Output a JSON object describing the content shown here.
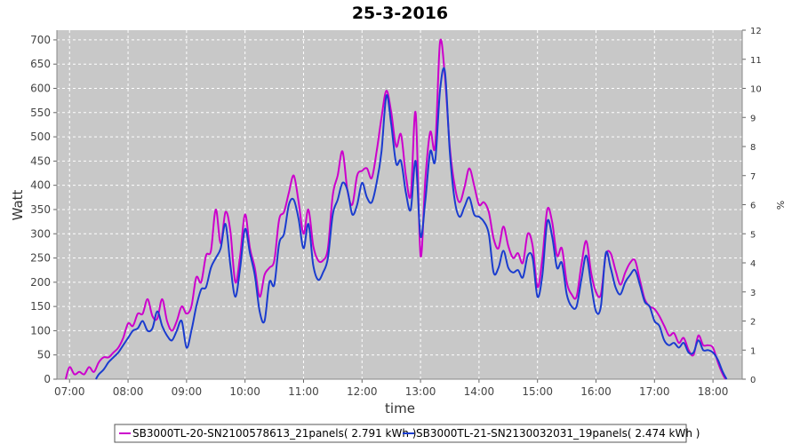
{
  "chart_data": {
    "type": "line",
    "title": "25-3-2016",
    "xlabel": "time",
    "ylabel": "Watt",
    "ylabel_right": "%",
    "x_ticks": [
      "07:00",
      "08:00",
      "09:00",
      "10:00",
      "11:00",
      "12:00",
      "13:00",
      "14:00",
      "15:00",
      "16:00",
      "17:00",
      "18:00"
    ],
    "y_ticks": [
      0,
      50,
      100,
      150,
      200,
      250,
      300,
      350,
      400,
      450,
      500,
      550,
      600,
      650,
      700
    ],
    "y2_ticks": [
      0,
      1,
      2,
      3,
      4,
      5,
      6,
      7,
      8,
      9,
      10,
      11,
      12
    ],
    "xlim": [
      "06:47",
      "18:30"
    ],
    "ylim": [
      0,
      720
    ],
    "y2lim": [
      0,
      12
    ],
    "grid": true,
    "legend_position": "bottom",
    "colors": {
      "plot_bg": "#c8c8c8"
    },
    "series": [
      {
        "name": "SB3000TL-20-SN2100578613_21panels( 2.791 kWh )",
        "color": "#cc00cc",
        "points": [
          [
            "06:56",
            0
          ],
          [
            "07:00",
            25
          ],
          [
            "07:05",
            10
          ],
          [
            "07:10",
            15
          ],
          [
            "07:15",
            10
          ],
          [
            "07:20",
            25
          ],
          [
            "07:25",
            15
          ],
          [
            "07:30",
            35
          ],
          [
            "07:35",
            45
          ],
          [
            "07:40",
            45
          ],
          [
            "07:45",
            55
          ],
          [
            "07:50",
            65
          ],
          [
            "07:55",
            85
          ],
          [
            "08:00",
            115
          ],
          [
            "08:05",
            110
          ],
          [
            "08:10",
            135
          ],
          [
            "08:15",
            135
          ],
          [
            "08:20",
            165
          ],
          [
            "08:25",
            130
          ],
          [
            "08:30",
            125
          ],
          [
            "08:35",
            165
          ],
          [
            "08:40",
            120
          ],
          [
            "08:45",
            100
          ],
          [
            "08:50",
            120
          ],
          [
            "08:55",
            150
          ],
          [
            "09:00",
            135
          ],
          [
            "09:05",
            150
          ],
          [
            "09:10",
            210
          ],
          [
            "09:15",
            200
          ],
          [
            "09:20",
            255
          ],
          [
            "09:25",
            265
          ],
          [
            "09:30",
            350
          ],
          [
            "09:35",
            280
          ],
          [
            "09:40",
            345
          ],
          [
            "09:45",
            305
          ],
          [
            "09:50",
            200
          ],
          [
            "09:55",
            255
          ],
          [
            "10:00",
            340
          ],
          [
            "10:05",
            270
          ],
          [
            "10:10",
            230
          ],
          [
            "10:15",
            170
          ],
          [
            "10:20",
            215
          ],
          [
            "10:25",
            230
          ],
          [
            "10:30",
            245
          ],
          [
            "10:35",
            330
          ],
          [
            "10:40",
            345
          ],
          [
            "10:45",
            385
          ],
          [
            "10:50",
            420
          ],
          [
            "10:55",
            365
          ],
          [
            "11:00",
            300
          ],
          [
            "11:05",
            350
          ],
          [
            "11:10",
            275
          ],
          [
            "11:15",
            245
          ],
          [
            "11:20",
            245
          ],
          [
            "11:25",
            270
          ],
          [
            "11:30",
            380
          ],
          [
            "11:35",
            420
          ],
          [
            "11:40",
            470
          ],
          [
            "11:45",
            390
          ],
          [
            "11:50",
            360
          ],
          [
            "11:55",
            420
          ],
          [
            "12:00",
            430
          ],
          [
            "12:05",
            435
          ],
          [
            "12:10",
            415
          ],
          [
            "12:15",
            470
          ],
          [
            "12:20",
            540
          ],
          [
            "12:25",
            595
          ],
          [
            "12:30",
            550
          ],
          [
            "12:35",
            480
          ],
          [
            "12:40",
            505
          ],
          [
            "12:45",
            420
          ],
          [
            "12:50",
            380
          ],
          [
            "12:55",
            550
          ],
          [
            "13:00",
            255
          ],
          [
            "13:05",
            415
          ],
          [
            "13:10",
            510
          ],
          [
            "13:15",
            480
          ],
          [
            "13:20",
            695
          ],
          [
            "13:25",
            625
          ],
          [
            "13:30",
            480
          ],
          [
            "13:35",
            400
          ],
          [
            "13:40",
            365
          ],
          [
            "13:45",
            395
          ],
          [
            "13:50",
            435
          ],
          [
            "13:55",
            400
          ],
          [
            "14:00",
            360
          ],
          [
            "14:05",
            365
          ],
          [
            "14:10",
            345
          ],
          [
            "14:15",
            290
          ],
          [
            "14:20",
            270
          ],
          [
            "14:25",
            315
          ],
          [
            "14:30",
            275
          ],
          [
            "14:35",
            250
          ],
          [
            "14:40",
            260
          ],
          [
            "14:45",
            240
          ],
          [
            "14:50",
            300
          ],
          [
            "14:55",
            275
          ],
          [
            "15:00",
            190
          ],
          [
            "15:05",
            250
          ],
          [
            "15:10",
            350
          ],
          [
            "15:15",
            325
          ],
          [
            "15:20",
            255
          ],
          [
            "15:25",
            270
          ],
          [
            "15:30",
            200
          ],
          [
            "15:35",
            175
          ],
          [
            "15:40",
            170
          ],
          [
            "15:45",
            235
          ],
          [
            "15:50",
            285
          ],
          [
            "15:55",
            220
          ],
          [
            "16:00",
            180
          ],
          [
            "16:05",
            175
          ],
          [
            "16:10",
            255
          ],
          [
            "16:15",
            260
          ],
          [
            "16:20",
            225
          ],
          [
            "16:25",
            195
          ],
          [
            "16:30",
            220
          ],
          [
            "16:35",
            240
          ],
          [
            "16:40",
            245
          ],
          [
            "16:45",
            205
          ],
          [
            "16:50",
            165
          ],
          [
            "16:55",
            150
          ],
          [
            "17:00",
            145
          ],
          [
            "17:05",
            130
          ],
          [
            "17:10",
            110
          ],
          [
            "17:15",
            90
          ],
          [
            "17:20",
            95
          ],
          [
            "17:25",
            75
          ],
          [
            "17:30",
            85
          ],
          [
            "17:35",
            60
          ],
          [
            "17:40",
            50
          ],
          [
            "17:45",
            90
          ],
          [
            "17:50",
            70
          ],
          [
            "17:55",
            70
          ],
          [
            "18:00",
            65
          ],
          [
            "18:05",
            35
          ],
          [
            "18:10",
            10
          ],
          [
            "18:13",
            0
          ]
        ]
      },
      {
        "name": "SB3000TL-21-SN2130032031_19panels( 2.474 kWh )",
        "color": "#1a3ccf",
        "points": [
          [
            "07:27",
            0
          ],
          [
            "07:30",
            10
          ],
          [
            "07:35",
            20
          ],
          [
            "07:40",
            35
          ],
          [
            "07:45",
            45
          ],
          [
            "07:50",
            55
          ],
          [
            "07:55",
            70
          ],
          [
            "08:00",
            85
          ],
          [
            "08:05",
            100
          ],
          [
            "08:10",
            105
          ],
          [
            "08:15",
            120
          ],
          [
            "08:20",
            100
          ],
          [
            "08:25",
            105
          ],
          [
            "08:30",
            140
          ],
          [
            "08:35",
            110
          ],
          [
            "08:40",
            90
          ],
          [
            "08:45",
            80
          ],
          [
            "08:50",
            100
          ],
          [
            "08:55",
            120
          ],
          [
            "09:00",
            65
          ],
          [
            "09:05",
            100
          ],
          [
            "09:10",
            150
          ],
          [
            "09:15",
            185
          ],
          [
            "09:20",
            190
          ],
          [
            "09:25",
            230
          ],
          [
            "09:30",
            250
          ],
          [
            "09:35",
            270
          ],
          [
            "09:40",
            320
          ],
          [
            "09:45",
            235
          ],
          [
            "09:50",
            170
          ],
          [
            "09:55",
            230
          ],
          [
            "10:00",
            310
          ],
          [
            "10:05",
            260
          ],
          [
            "10:10",
            215
          ],
          [
            "10:15",
            140
          ],
          [
            "10:20",
            120
          ],
          [
            "10:25",
            200
          ],
          [
            "10:30",
            195
          ],
          [
            "10:35",
            280
          ],
          [
            "10:40",
            300
          ],
          [
            "10:45",
            360
          ],
          [
            "10:50",
            370
          ],
          [
            "10:55",
            330
          ],
          [
            "11:00",
            270
          ],
          [
            "11:05",
            320
          ],
          [
            "11:10",
            235
          ],
          [
            "11:15",
            205
          ],
          [
            "11:20",
            220
          ],
          [
            "11:25",
            250
          ],
          [
            "11:30",
            340
          ],
          [
            "11:35",
            370
          ],
          [
            "11:40",
            405
          ],
          [
            "11:45",
            390
          ],
          [
            "11:50",
            340
          ],
          [
            "11:55",
            360
          ],
          [
            "12:00",
            405
          ],
          [
            "12:05",
            375
          ],
          [
            "12:10",
            365
          ],
          [
            "12:15",
            405
          ],
          [
            "12:20",
            470
          ],
          [
            "12:25",
            585
          ],
          [
            "12:30",
            525
          ],
          [
            "12:35",
            445
          ],
          [
            "12:40",
            450
          ],
          [
            "12:45",
            385
          ],
          [
            "12:50",
            350
          ],
          [
            "12:55",
            450
          ],
          [
            "13:00",
            295
          ],
          [
            "13:05",
            370
          ],
          [
            "13:10",
            470
          ],
          [
            "13:15",
            450
          ],
          [
            "13:20",
            595
          ],
          [
            "13:25",
            635
          ],
          [
            "13:30",
            470
          ],
          [
            "13:35",
            370
          ],
          [
            "13:40",
            335
          ],
          [
            "13:45",
            355
          ],
          [
            "13:50",
            375
          ],
          [
            "13:55",
            340
          ],
          [
            "14:00",
            335
          ],
          [
            "14:05",
            325
          ],
          [
            "14:10",
            300
          ],
          [
            "14:15",
            220
          ],
          [
            "14:20",
            230
          ],
          [
            "14:25",
            265
          ],
          [
            "14:30",
            230
          ],
          [
            "14:35",
            220
          ],
          [
            "14:40",
            225
          ],
          [
            "14:45",
            210
          ],
          [
            "14:50",
            255
          ],
          [
            "14:55",
            250
          ],
          [
            "15:00",
            170
          ],
          [
            "15:05",
            215
          ],
          [
            "15:10",
            325
          ],
          [
            "15:15",
            295
          ],
          [
            "15:20",
            230
          ],
          [
            "15:25",
            240
          ],
          [
            "15:30",
            175
          ],
          [
            "15:35",
            150
          ],
          [
            "15:40",
            150
          ],
          [
            "15:45",
            205
          ],
          [
            "15:50",
            255
          ],
          [
            "15:55",
            195
          ],
          [
            "16:00",
            140
          ],
          [
            "16:05",
            150
          ],
          [
            "16:10",
            260
          ],
          [
            "16:15",
            230
          ],
          [
            "16:20",
            190
          ],
          [
            "16:25",
            175
          ],
          [
            "16:30",
            200
          ],
          [
            "16:35",
            215
          ],
          [
            "16:40",
            225
          ],
          [
            "16:45",
            195
          ],
          [
            "16:50",
            160
          ],
          [
            "16:55",
            150
          ],
          [
            "17:00",
            120
          ],
          [
            "17:05",
            110
          ],
          [
            "17:10",
            80
          ],
          [
            "17:15",
            70
          ],
          [
            "17:20",
            75
          ],
          [
            "17:25",
            65
          ],
          [
            "17:30",
            75
          ],
          [
            "17:35",
            55
          ],
          [
            "17:40",
            55
          ],
          [
            "17:45",
            80
          ],
          [
            "17:50",
            60
          ],
          [
            "17:55",
            60
          ],
          [
            "18:00",
            55
          ],
          [
            "18:05",
            40
          ],
          [
            "18:10",
            15
          ],
          [
            "18:14",
            0
          ]
        ]
      }
    ]
  }
}
